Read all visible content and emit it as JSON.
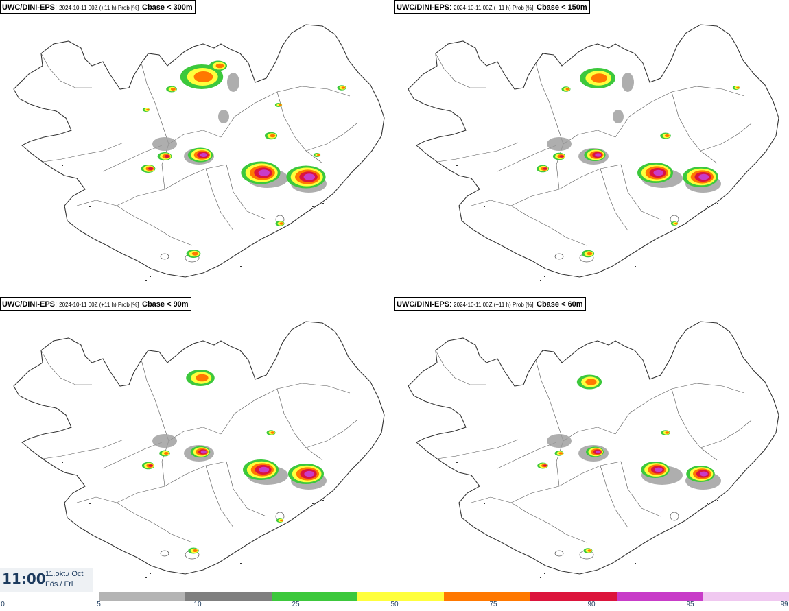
{
  "panels": [
    {
      "model": "UWC/DINI-EPS",
      "meta": "2024-10-11 00Z (+11 h) Prob [%]",
      "field": "Cbase < 300m"
    },
    {
      "model": "UWC/DINI-EPS",
      "meta": "2024-10-11 00Z (+11 h) Prob [%]",
      "field": "Cbase < 150m"
    },
    {
      "model": "UWC/DINI-EPS",
      "meta": "2024-10-11 00Z (+11 h) Prob [%]",
      "field": "Cbase < 90m"
    },
    {
      "model": "UWC/DINI-EPS",
      "meta": "2024-10-11 00Z (+11 h) Prob [%]",
      "field": "Cbase < 60m"
    }
  ],
  "time": {
    "clock": "11:00",
    "date_line": "11.okt./ Oct",
    "day_line": "Fös./ Fri"
  },
  "legend": {
    "ticks": [
      "0",
      "5",
      "10",
      "25",
      "50",
      "75",
      "90",
      "95",
      "99"
    ],
    "colors": [
      "#b4b4b4",
      "#7f7f7f",
      "#3cc83c",
      "#ffff3c",
      "#ff7800",
      "#dc143c",
      "#c83cc8",
      "#f0c8f0"
    ]
  },
  "map_style": {
    "coast_color": "#333333",
    "border_color": "#555555"
  },
  "blobs": [
    {
      "colors": [
        "#3cc83c",
        "#ffff3c",
        "#ff7800"
      ]
    },
    {
      "colors": [
        "#3cc83c",
        "#ffff3c",
        "#ff7800"
      ]
    },
    {
      "colors": [
        "#3cc83c",
        "#ffff3c",
        "#ff7800",
        "#dc143c"
      ]
    },
    {
      "colors": [
        "#3cc83c",
        "#ffff3c",
        "#ff7800",
        "#dc143c",
        "#c83cc8"
      ]
    }
  ]
}
